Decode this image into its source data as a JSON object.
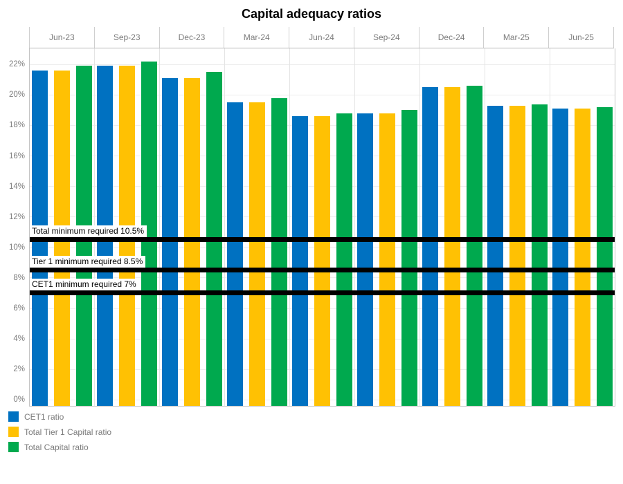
{
  "chart_data": {
    "type": "bar",
    "title": "Capital adequacy ratios",
    "categories": [
      "Jun-23",
      "Sep-23",
      "Dec-23",
      "Mar-24",
      "Jun-24",
      "Sep-24",
      "Dec-24",
      "Mar-25",
      "Jun-25"
    ],
    "series": [
      {
        "name": "CET1 ratio",
        "color": "#0071C1",
        "values": [
          21.6,
          21.9,
          21.1,
          19.5,
          18.6,
          18.8,
          20.5,
          19.3,
          19.1
        ]
      },
      {
        "name": "Total Tier 1 Capital ratio",
        "color": "#FFC103",
        "values": [
          21.6,
          21.9,
          21.1,
          19.5,
          18.6,
          18.8,
          20.5,
          19.3,
          19.1
        ]
      },
      {
        "name": "Total Capital ratio",
        "color": "#00A94E",
        "values": [
          21.9,
          22.2,
          21.5,
          19.8,
          18.8,
          19.0,
          20.6,
          19.4,
          19.2
        ]
      }
    ],
    "y_axis": {
      "min": 0,
      "max": 22,
      "step": 2,
      "format": "percent"
    },
    "y_tick_labels": [
      "0%",
      "2%",
      "4%",
      "6%",
      "8%",
      "10%",
      "12%",
      "14%",
      "16%",
      "18%",
      "20%",
      "22%"
    ],
    "reference_lines": [
      {
        "label": "Total minimum required 10.5%",
        "value": 10.5,
        "color": "#000000"
      },
      {
        "label": "Tier 1 minimum required 8.5%",
        "value": 8.5,
        "color": "#000000"
      },
      {
        "label": "CET1 minimum required 7%",
        "value": 7,
        "color": "#000000"
      }
    ],
    "legend_position": "bottom-left",
    "grid": true
  }
}
